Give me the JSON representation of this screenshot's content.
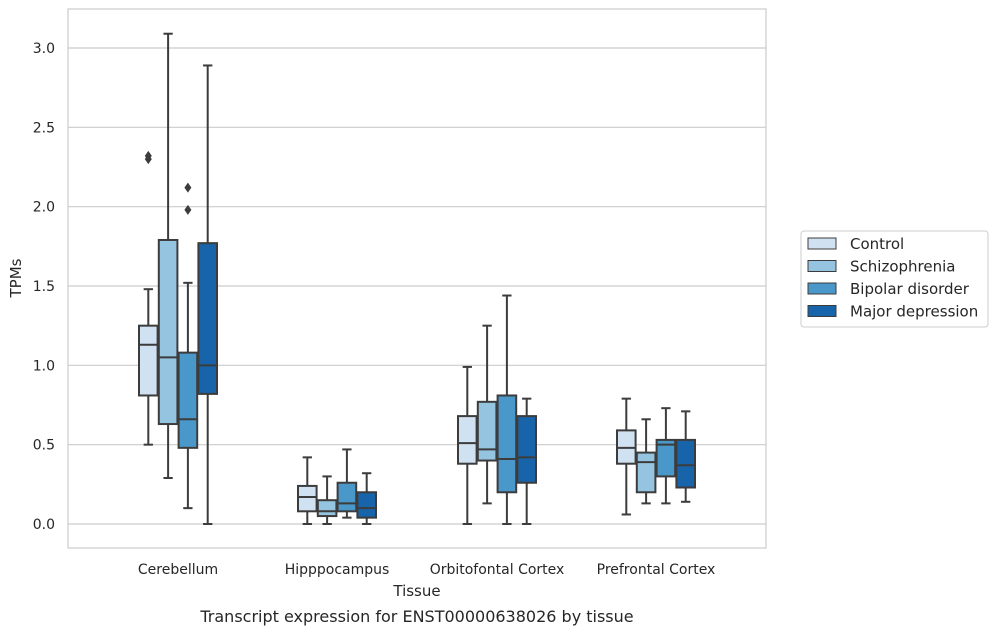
{
  "chart_data": {
    "type": "box",
    "title": "",
    "caption": "Transcript expression for ENST00000638026 by tissue",
    "xlabel": "Tissue",
    "ylabel": "TPMs",
    "ylim": [
      -0.15,
      3.25
    ],
    "yticks": [
      0.0,
      0.5,
      1.0,
      1.5,
      2.0,
      2.5,
      3.0
    ],
    "ytick_labels": [
      "0.0",
      "0.5",
      "1.0",
      "1.5",
      "2.0",
      "2.5",
      "3.0"
    ],
    "grid": "horizontal",
    "legend_position": "right",
    "categories": [
      "Cerebellum",
      "Hipppocampus",
      "Orbitofontal Cortex",
      "Prefrontal Cortex"
    ],
    "series": [
      {
        "name": "Control",
        "color": "#d0e1f2",
        "boxes": [
          {
            "whisker_low": 0.5,
            "q1": 0.81,
            "median": 1.13,
            "q3": 1.25,
            "whisker_high": 1.48,
            "outliers": [
              2.3,
              2.32
            ]
          },
          {
            "whisker_low": 0.0,
            "q1": 0.08,
            "median": 0.17,
            "q3": 0.24,
            "whisker_high": 0.42,
            "outliers": []
          },
          {
            "whisker_low": 0.0,
            "q1": 0.38,
            "median": 0.51,
            "q3": 0.68,
            "whisker_high": 0.99,
            "outliers": []
          },
          {
            "whisker_low": 0.06,
            "q1": 0.38,
            "median": 0.48,
            "q3": 0.59,
            "whisker_high": 0.79,
            "outliers": []
          }
        ]
      },
      {
        "name": "Schizophrenia",
        "color": "#94c4df",
        "boxes": [
          {
            "whisker_low": 0.29,
            "q1": 0.63,
            "median": 1.05,
            "q3": 1.79,
            "whisker_high": 3.09,
            "outliers": []
          },
          {
            "whisker_low": 0.0,
            "q1": 0.05,
            "median": 0.08,
            "q3": 0.15,
            "whisker_high": 0.3,
            "outliers": []
          },
          {
            "whisker_low": 0.13,
            "q1": 0.4,
            "median": 0.47,
            "q3": 0.77,
            "whisker_high": 1.25,
            "outliers": []
          },
          {
            "whisker_low": 0.13,
            "q1": 0.2,
            "median": 0.39,
            "q3": 0.45,
            "whisker_high": 0.66,
            "outliers": []
          }
        ]
      },
      {
        "name": "Bipolar disorder",
        "color": "#4a98c9",
        "boxes": [
          {
            "whisker_low": 0.1,
            "q1": 0.48,
            "median": 0.66,
            "q3": 1.08,
            "whisker_high": 1.52,
            "outliers": [
              1.98,
              2.12
            ]
          },
          {
            "whisker_low": 0.04,
            "q1": 0.08,
            "median": 0.13,
            "q3": 0.26,
            "whisker_high": 0.47,
            "outliers": []
          },
          {
            "whisker_low": 0.0,
            "q1": 0.2,
            "median": 0.41,
            "q3": 0.81,
            "whisker_high": 1.44,
            "outliers": []
          },
          {
            "whisker_low": 0.13,
            "q1": 0.3,
            "median": 0.5,
            "q3": 0.53,
            "whisker_high": 0.73,
            "outliers": []
          }
        ]
      },
      {
        "name": "Major depression",
        "color": "#1764ab",
        "boxes": [
          {
            "whisker_low": 0.0,
            "q1": 0.82,
            "median": 1.0,
            "q3": 1.77,
            "whisker_high": 2.89,
            "outliers": []
          },
          {
            "whisker_low": 0.0,
            "q1": 0.04,
            "median": 0.1,
            "q3": 0.2,
            "whisker_high": 0.32,
            "outliers": []
          },
          {
            "whisker_low": 0.0,
            "q1": 0.26,
            "median": 0.42,
            "q3": 0.68,
            "whisker_high": 0.79,
            "outliers": []
          },
          {
            "whisker_low": 0.14,
            "q1": 0.23,
            "median": 0.37,
            "q3": 0.53,
            "whisker_high": 0.71,
            "outliers": []
          }
        ]
      }
    ]
  }
}
